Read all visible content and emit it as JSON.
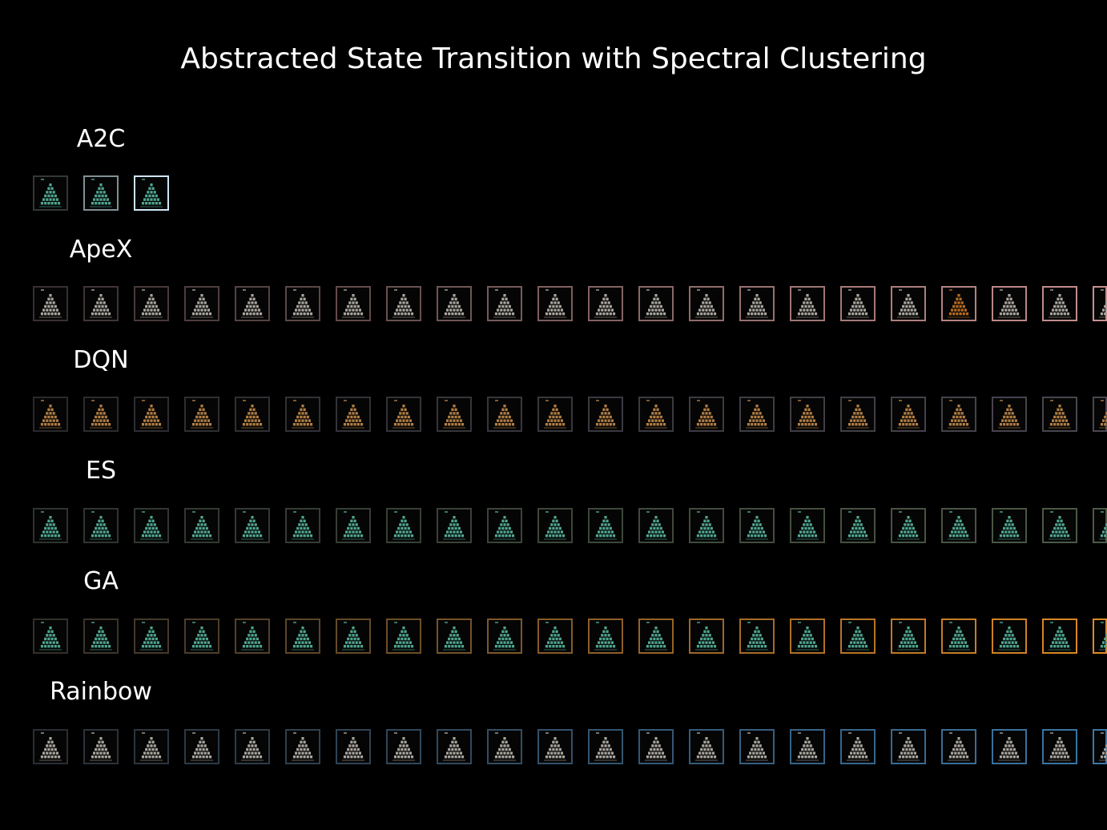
{
  "title": "Abstracted State Transition with Spectral Clustering",
  "rows": [
    {
      "label": "A2C",
      "count": 3,
      "pyramid_color": "#4fa58e",
      "border_start": "#333833",
      "border_end": "#cfe6f5"
    },
    {
      "label": "ApeX",
      "count": 22,
      "pyramid_color": "#a7a49c",
      "border_start": "#3a3030",
      "border_end": "#c89090",
      "highlight_index": 18,
      "highlight_pyramid_color": "#b36a1f"
    },
    {
      "label": "DQN",
      "count": 22,
      "pyramid_color": "#b07d44",
      "border_start": "#2a2a2e",
      "border_end": "#4a4650"
    },
    {
      "label": "ES",
      "count": 22,
      "pyramid_color": "#4fa58e",
      "border_start": "#2e332e",
      "border_end": "#4d5a46"
    },
    {
      "label": "GA",
      "count": 22,
      "pyramid_color": "#4fa58e",
      "border_start": "#33302a",
      "border_end": "#e08a25"
    },
    {
      "label": "Rainbow",
      "count": 22,
      "pyramid_color": "#a7a49c",
      "border_start": "#2a2e33",
      "border_end": "#3a78a8"
    }
  ]
}
